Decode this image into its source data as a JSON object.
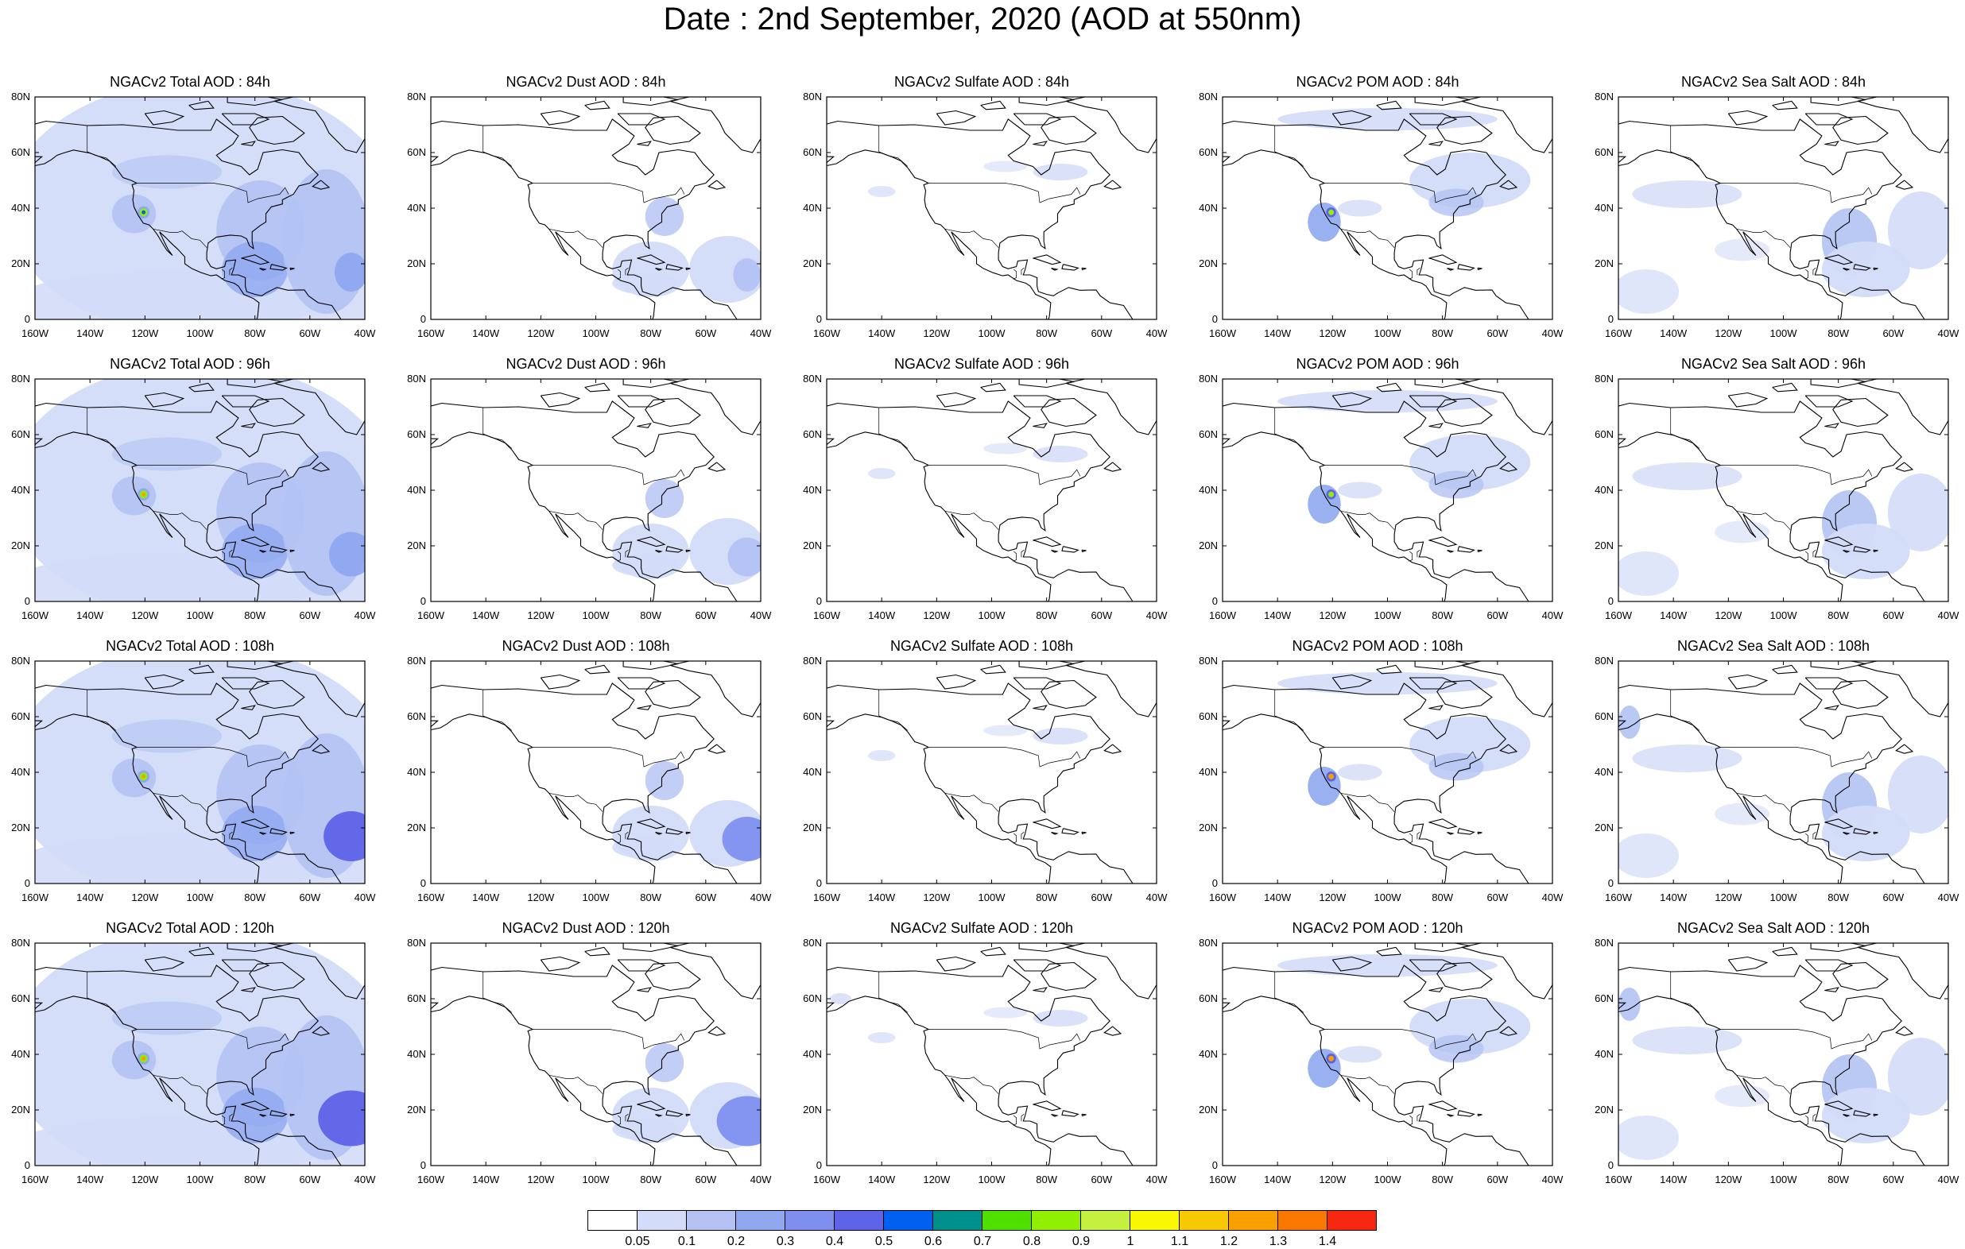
{
  "title": "Date : 2nd September, 2020 (AOD at 550nm)",
  "x_ticks": [
    "160W",
    "140W",
    "120W",
    "100W",
    "80W",
    "60W",
    "40W"
  ],
  "y_ticks": [
    "0",
    "20N",
    "40N",
    "60N",
    "80N"
  ],
  "panels": [
    [
      {
        "title": "NGACv2 Total AOD : 84h",
        "species": "total"
      },
      {
        "title": "NGACv2 Dust AOD : 84h",
        "species": "dust"
      },
      {
        "title": "NGACv2 Sulfate AOD : 84h",
        "species": "sulfate"
      },
      {
        "title": "NGACv2 POM AOD : 84h",
        "species": "pom"
      },
      {
        "title": "NGACv2 Sea Salt AOD : 84h",
        "species": "seasalt"
      }
    ],
    [
      {
        "title": "NGACv2 Total AOD : 96h",
        "species": "total"
      },
      {
        "title": "NGACv2 Dust AOD : 96h",
        "species": "dust"
      },
      {
        "title": "NGACv2 Sulfate AOD : 96h",
        "species": "sulfate"
      },
      {
        "title": "NGACv2 POM AOD : 96h",
        "species": "pom"
      },
      {
        "title": "NGACv2 Sea Salt AOD : 96h",
        "species": "seasalt"
      }
    ],
    [
      {
        "title": "NGACv2 Total AOD : 108h",
        "species": "total"
      },
      {
        "title": "NGACv2 Dust AOD : 108h",
        "species": "dust"
      },
      {
        "title": "NGACv2 Sulfate AOD : 108h",
        "species": "sulfate"
      },
      {
        "title": "NGACv2 POM AOD : 108h",
        "species": "pom"
      },
      {
        "title": "NGACv2 Sea Salt  AOD : 108h",
        "species": "seasalt"
      }
    ],
    [
      {
        "title": "NGACv2 Total AOD : 120h",
        "species": "total"
      },
      {
        "title": "NGACv2 Dust AOD : 120h",
        "species": "dust"
      },
      {
        "title": "NGACv2 Sulfate AOD : 120h",
        "species": "sulfate"
      },
      {
        "title": "NGACv2 POM AOD : 120h",
        "species": "pom"
      },
      {
        "title": "NGACv2 Sea Salt  AOD : 120h",
        "species": "seasalt"
      }
    ]
  ],
  "colorbar": {
    "labels": [
      "0.05",
      "0.1",
      "0.2",
      "0.3",
      "0.4",
      "0.5",
      "0.6",
      "0.7",
      "0.8",
      "0.9",
      "1",
      "1.1",
      "1.2",
      "1.3",
      "1.4"
    ],
    "colors": [
      "#ffffff",
      "#d3dcf8",
      "#b3c2f3",
      "#8fa8f0",
      "#7f8ff0",
      "#5f63e8",
      "#0060f0",
      "#00908c",
      "#50e000",
      "#90f000",
      "#c4f040",
      "#f8f800",
      "#f8c800",
      "#f8a000",
      "#f87800",
      "#f82810"
    ]
  }
}
